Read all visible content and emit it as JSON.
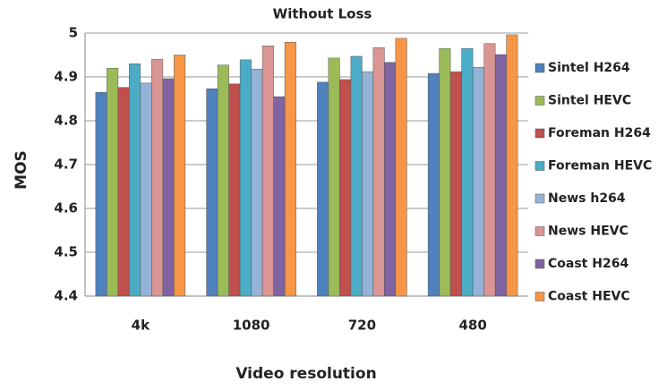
{
  "chart_data": {
    "type": "bar",
    "title": "Without Loss",
    "x_label": "Video resolution",
    "y_label": "MOS",
    "categories": [
      "4k",
      "1080",
      "720",
      "480"
    ],
    "series": [
      {
        "name": "Sintel H264",
        "color": "#4f81bd",
        "values": [
          4.865,
          4.873,
          4.888,
          4.908
        ]
      },
      {
        "name": "Sintel HEVC",
        "color": "#9bbb59",
        "values": [
          4.92,
          4.927,
          4.943,
          4.965
        ]
      },
      {
        "name": "Foreman H264",
        "color": "#c0504d",
        "values": [
          4.876,
          4.884,
          4.894,
          4.912
        ]
      },
      {
        "name": "Foreman HEVC",
        "color": "#4bacc6",
        "values": [
          4.93,
          4.939,
          4.947,
          4.965
        ]
      },
      {
        "name": "News h264",
        "color": "#95b3d7",
        "values": [
          4.886,
          4.918,
          4.912,
          4.922
        ]
      },
      {
        "name": "News HEVC",
        "color": "#d99694",
        "values": [
          4.94,
          4.971,
          4.967,
          4.976
        ]
      },
      {
        "name": "Coast H264",
        "color": "#8064a2",
        "values": [
          4.896,
          4.855,
          4.933,
          4.951
        ]
      },
      {
        "name": "Coast HEVC",
        "color": "#f79646",
        "values": [
          4.95,
          4.979,
          4.988,
          4.996
        ]
      }
    ],
    "ylim": [
      4.4,
      5
    ],
    "yticks": [
      4.4,
      4.5,
      4.6,
      4.7,
      4.8,
      4.9,
      5
    ],
    "grid": true,
    "legend": "right"
  }
}
